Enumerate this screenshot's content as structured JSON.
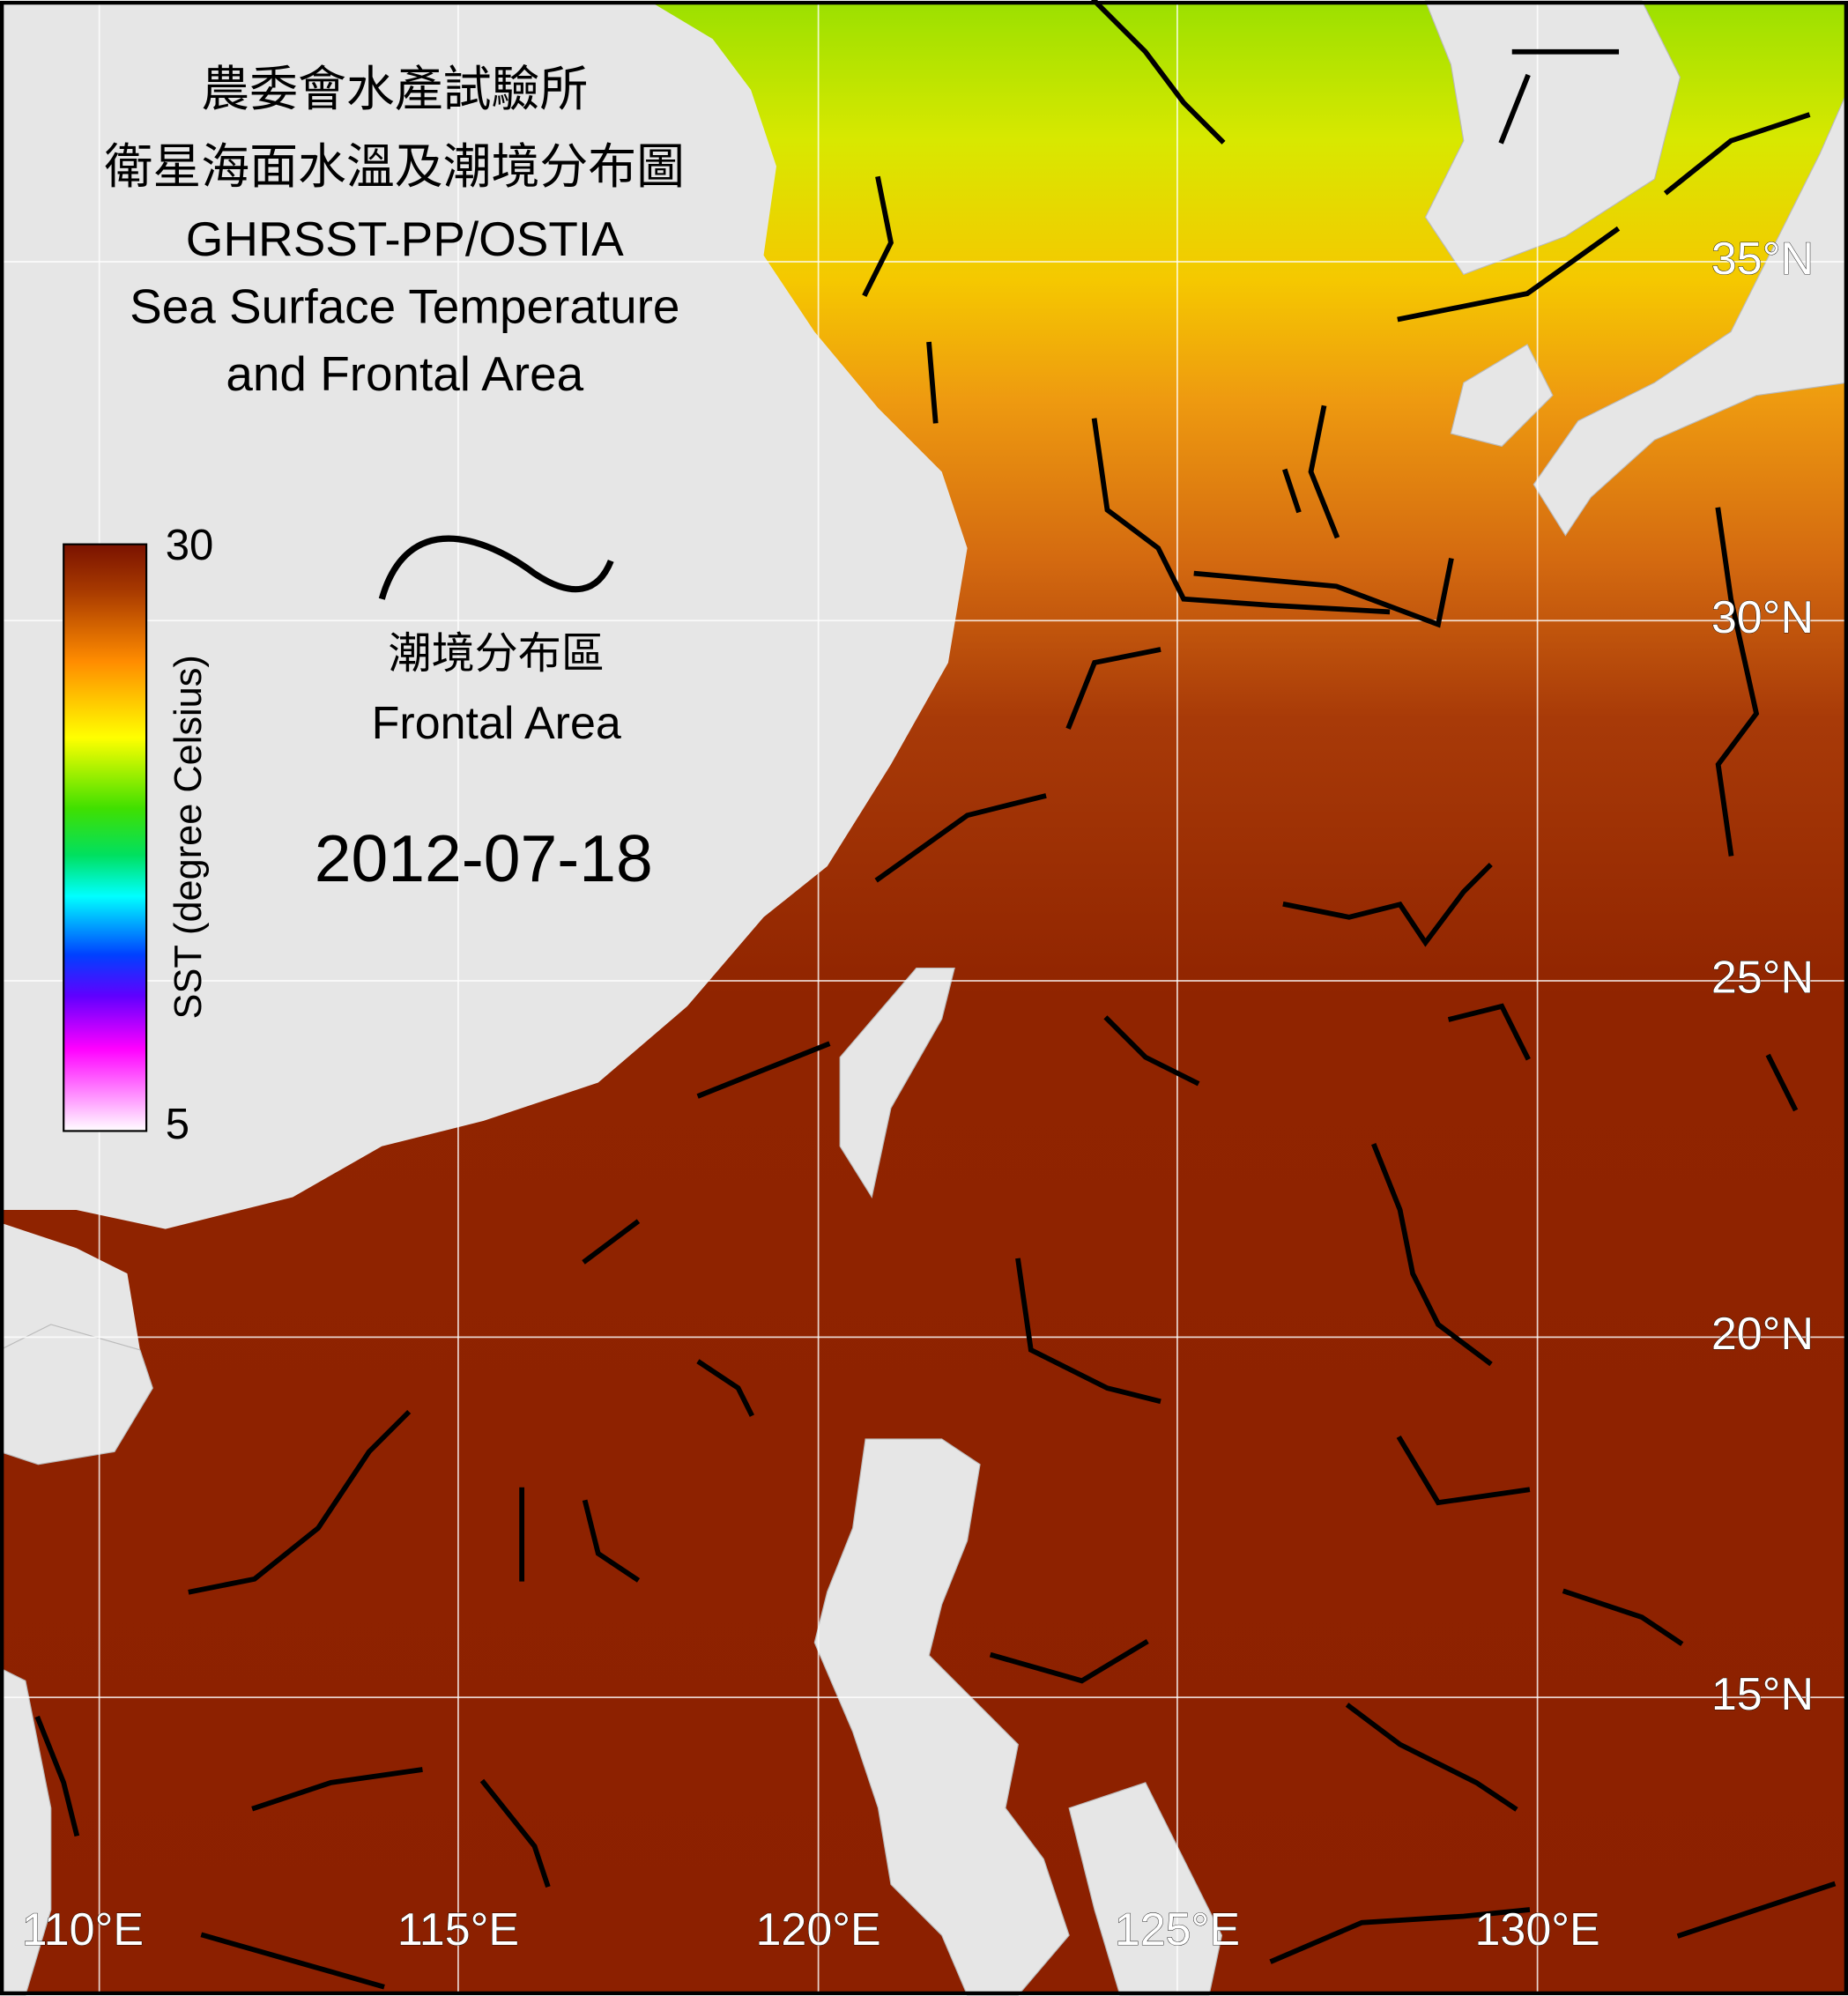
{
  "title": {
    "lines": [
      "農委會水產試驗所",
      "衛星海面水溫及潮境分布圖",
      "GHRSST-PP/OSTIA",
      "Sea Surface Temperature",
      "and Frontal Area"
    ]
  },
  "colorbar": {
    "max": 30,
    "min": 5,
    "label": "SST (degree Celsius)"
  },
  "front_legend": {
    "label_zh": "潮境分布區",
    "label_en": "Frontal Area"
  },
  "date": "2012-07-18",
  "lon_labels": [
    "110°E",
    "115°E",
    "120°E",
    "125°E",
    "130°E"
  ],
  "lat_labels": [
    "35°N",
    "30°N",
    "25°N",
    "20°N",
    "15°N"
  ]
}
